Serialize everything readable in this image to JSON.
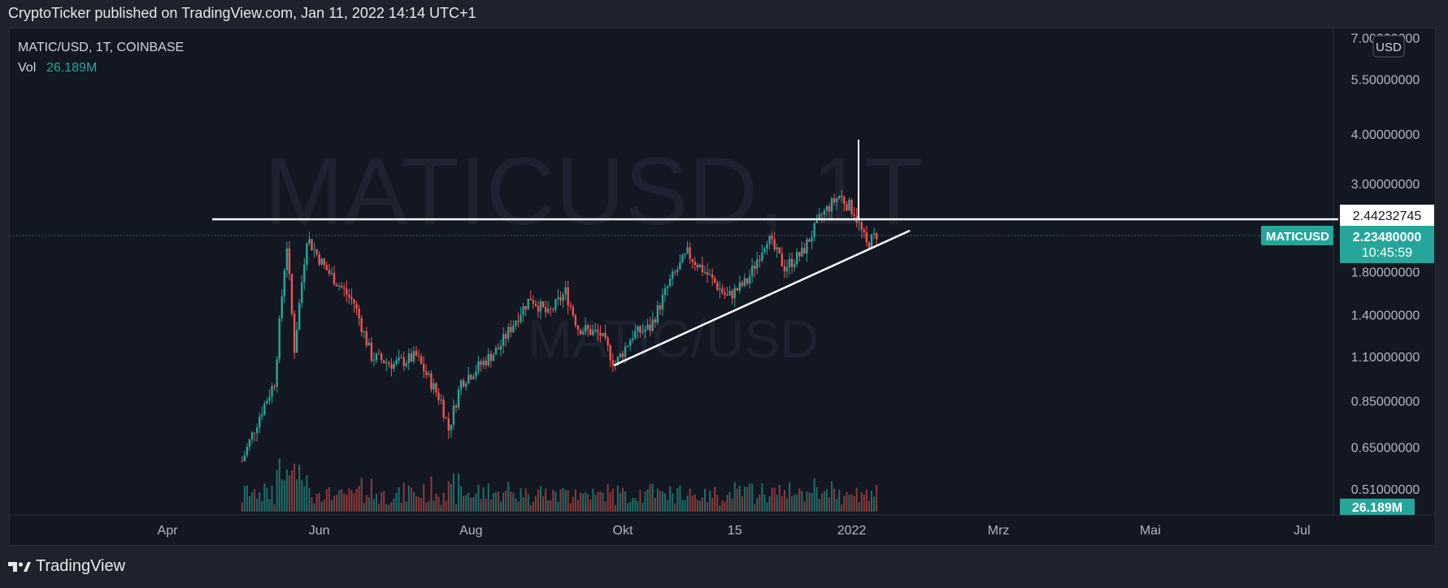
{
  "publish_line": "CryptoTicker published on TradingView.com, Jan 11, 2022 14:14 UTC+1",
  "legend": {
    "symbol_line": "MATIC/USD, 1T, COINBASE",
    "vol_label": "Vol",
    "vol_value": "26.189M"
  },
  "watermark": {
    "main": "MATICUSD, 1T",
    "sub": "MATIC/USD"
  },
  "currency_button": "USD",
  "footer_brand": "TradingView",
  "chart_data": {
    "type": "candlestick",
    "scale": "log",
    "ylim": [
      0.45,
      7.0
    ],
    "y_ticks": [
      {
        "label": "7.00000000",
        "value": 7.0
      },
      {
        "label": "5.50000000",
        "value": 5.5
      },
      {
        "label": "4.00000000",
        "value": 4.0
      },
      {
        "label": "3.00000000",
        "value": 3.0
      },
      {
        "label": "1.80000000",
        "value": 1.8
      },
      {
        "label": "1.40000000",
        "value": 1.4
      },
      {
        "label": "1.10000000",
        "value": 1.1
      },
      {
        "label": "0.85000000",
        "value": 0.85
      },
      {
        "label": "0.65000000",
        "value": 0.65
      },
      {
        "label": "0.51000000",
        "value": 0.51
      }
    ],
    "x_ticks": [
      {
        "label": "Apr",
        "date": "2021-04-01"
      },
      {
        "label": "Jun",
        "date": "2021-06-01"
      },
      {
        "label": "Aug",
        "date": "2021-08-01"
      },
      {
        "label": "Okt",
        "date": "2021-10-01"
      },
      {
        "label": "15",
        "date": "2021-11-15"
      },
      {
        "label": "2022",
        "date": "2022-01-01"
      },
      {
        "label": "Mrz",
        "date": "2022-03-01"
      },
      {
        "label": "Mai",
        "date": "2022-05-01"
      },
      {
        "label": "Jul",
        "date": "2022-07-01"
      }
    ],
    "price_path": [
      {
        "date": "2021-03-10",
        "price": null
      },
      {
        "date": "2021-05-01",
        "price": 0.6
      },
      {
        "date": "2021-05-08",
        "price": 0.78
      },
      {
        "date": "2021-05-14",
        "price": 0.95
      },
      {
        "date": "2021-05-18",
        "price": 1.85
      },
      {
        "date": "2021-05-19",
        "price": 2.1
      },
      {
        "date": "2021-05-22",
        "price": 1.15
      },
      {
        "date": "2021-05-27",
        "price": 2.2
      },
      {
        "date": "2021-06-03",
        "price": 1.85
      },
      {
        "date": "2021-06-15",
        "price": 1.5
      },
      {
        "date": "2021-06-22",
        "price": 1.1
      },
      {
        "date": "2021-07-01",
        "price": 1.05
      },
      {
        "date": "2021-07-10",
        "price": 1.1
      },
      {
        "date": "2021-07-20",
        "price": 0.85
      },
      {
        "date": "2021-07-23",
        "price": 0.72
      },
      {
        "date": "2021-07-28",
        "price": 0.95
      },
      {
        "date": "2021-08-05",
        "price": 1.05
      },
      {
        "date": "2021-08-12",
        "price": 1.15
      },
      {
        "date": "2021-08-20",
        "price": 1.4
      },
      {
        "date": "2021-08-25",
        "price": 1.55
      },
      {
        "date": "2021-09-01",
        "price": 1.4
      },
      {
        "date": "2021-09-08",
        "price": 1.6
      },
      {
        "date": "2021-09-13",
        "price": 1.3
      },
      {
        "date": "2021-09-22",
        "price": 1.25
      },
      {
        "date": "2021-09-28",
        "price": 1.05
      },
      {
        "date": "2021-10-05",
        "price": 1.25
      },
      {
        "date": "2021-10-12",
        "price": 1.3
      },
      {
        "date": "2021-10-20",
        "price": 1.7
      },
      {
        "date": "2021-10-27",
        "price": 2.0
      },
      {
        "date": "2021-11-03",
        "price": 1.8
      },
      {
        "date": "2021-11-12",
        "price": 1.55
      },
      {
        "date": "2021-11-20",
        "price": 1.7
      },
      {
        "date": "2021-11-28",
        "price": 2.2
      },
      {
        "date": "2021-12-05",
        "price": 1.85
      },
      {
        "date": "2021-12-12",
        "price": 2.0
      },
      {
        "date": "2021-12-20",
        "price": 2.5
      },
      {
        "date": "2021-12-27",
        "price": 2.8
      },
      {
        "date": "2022-01-02",
        "price": 2.55
      },
      {
        "date": "2022-01-07",
        "price": 2.1
      },
      {
        "date": "2022-01-11",
        "price": 2.2348
      }
    ],
    "current_price": {
      "label": "MATICUSD",
      "value": "2.23480000",
      "countdown": "10:45:59"
    },
    "horizontal_level": {
      "value": "2.44232745",
      "price": 2.44232745
    },
    "volume_label": "26.189M"
  }
}
